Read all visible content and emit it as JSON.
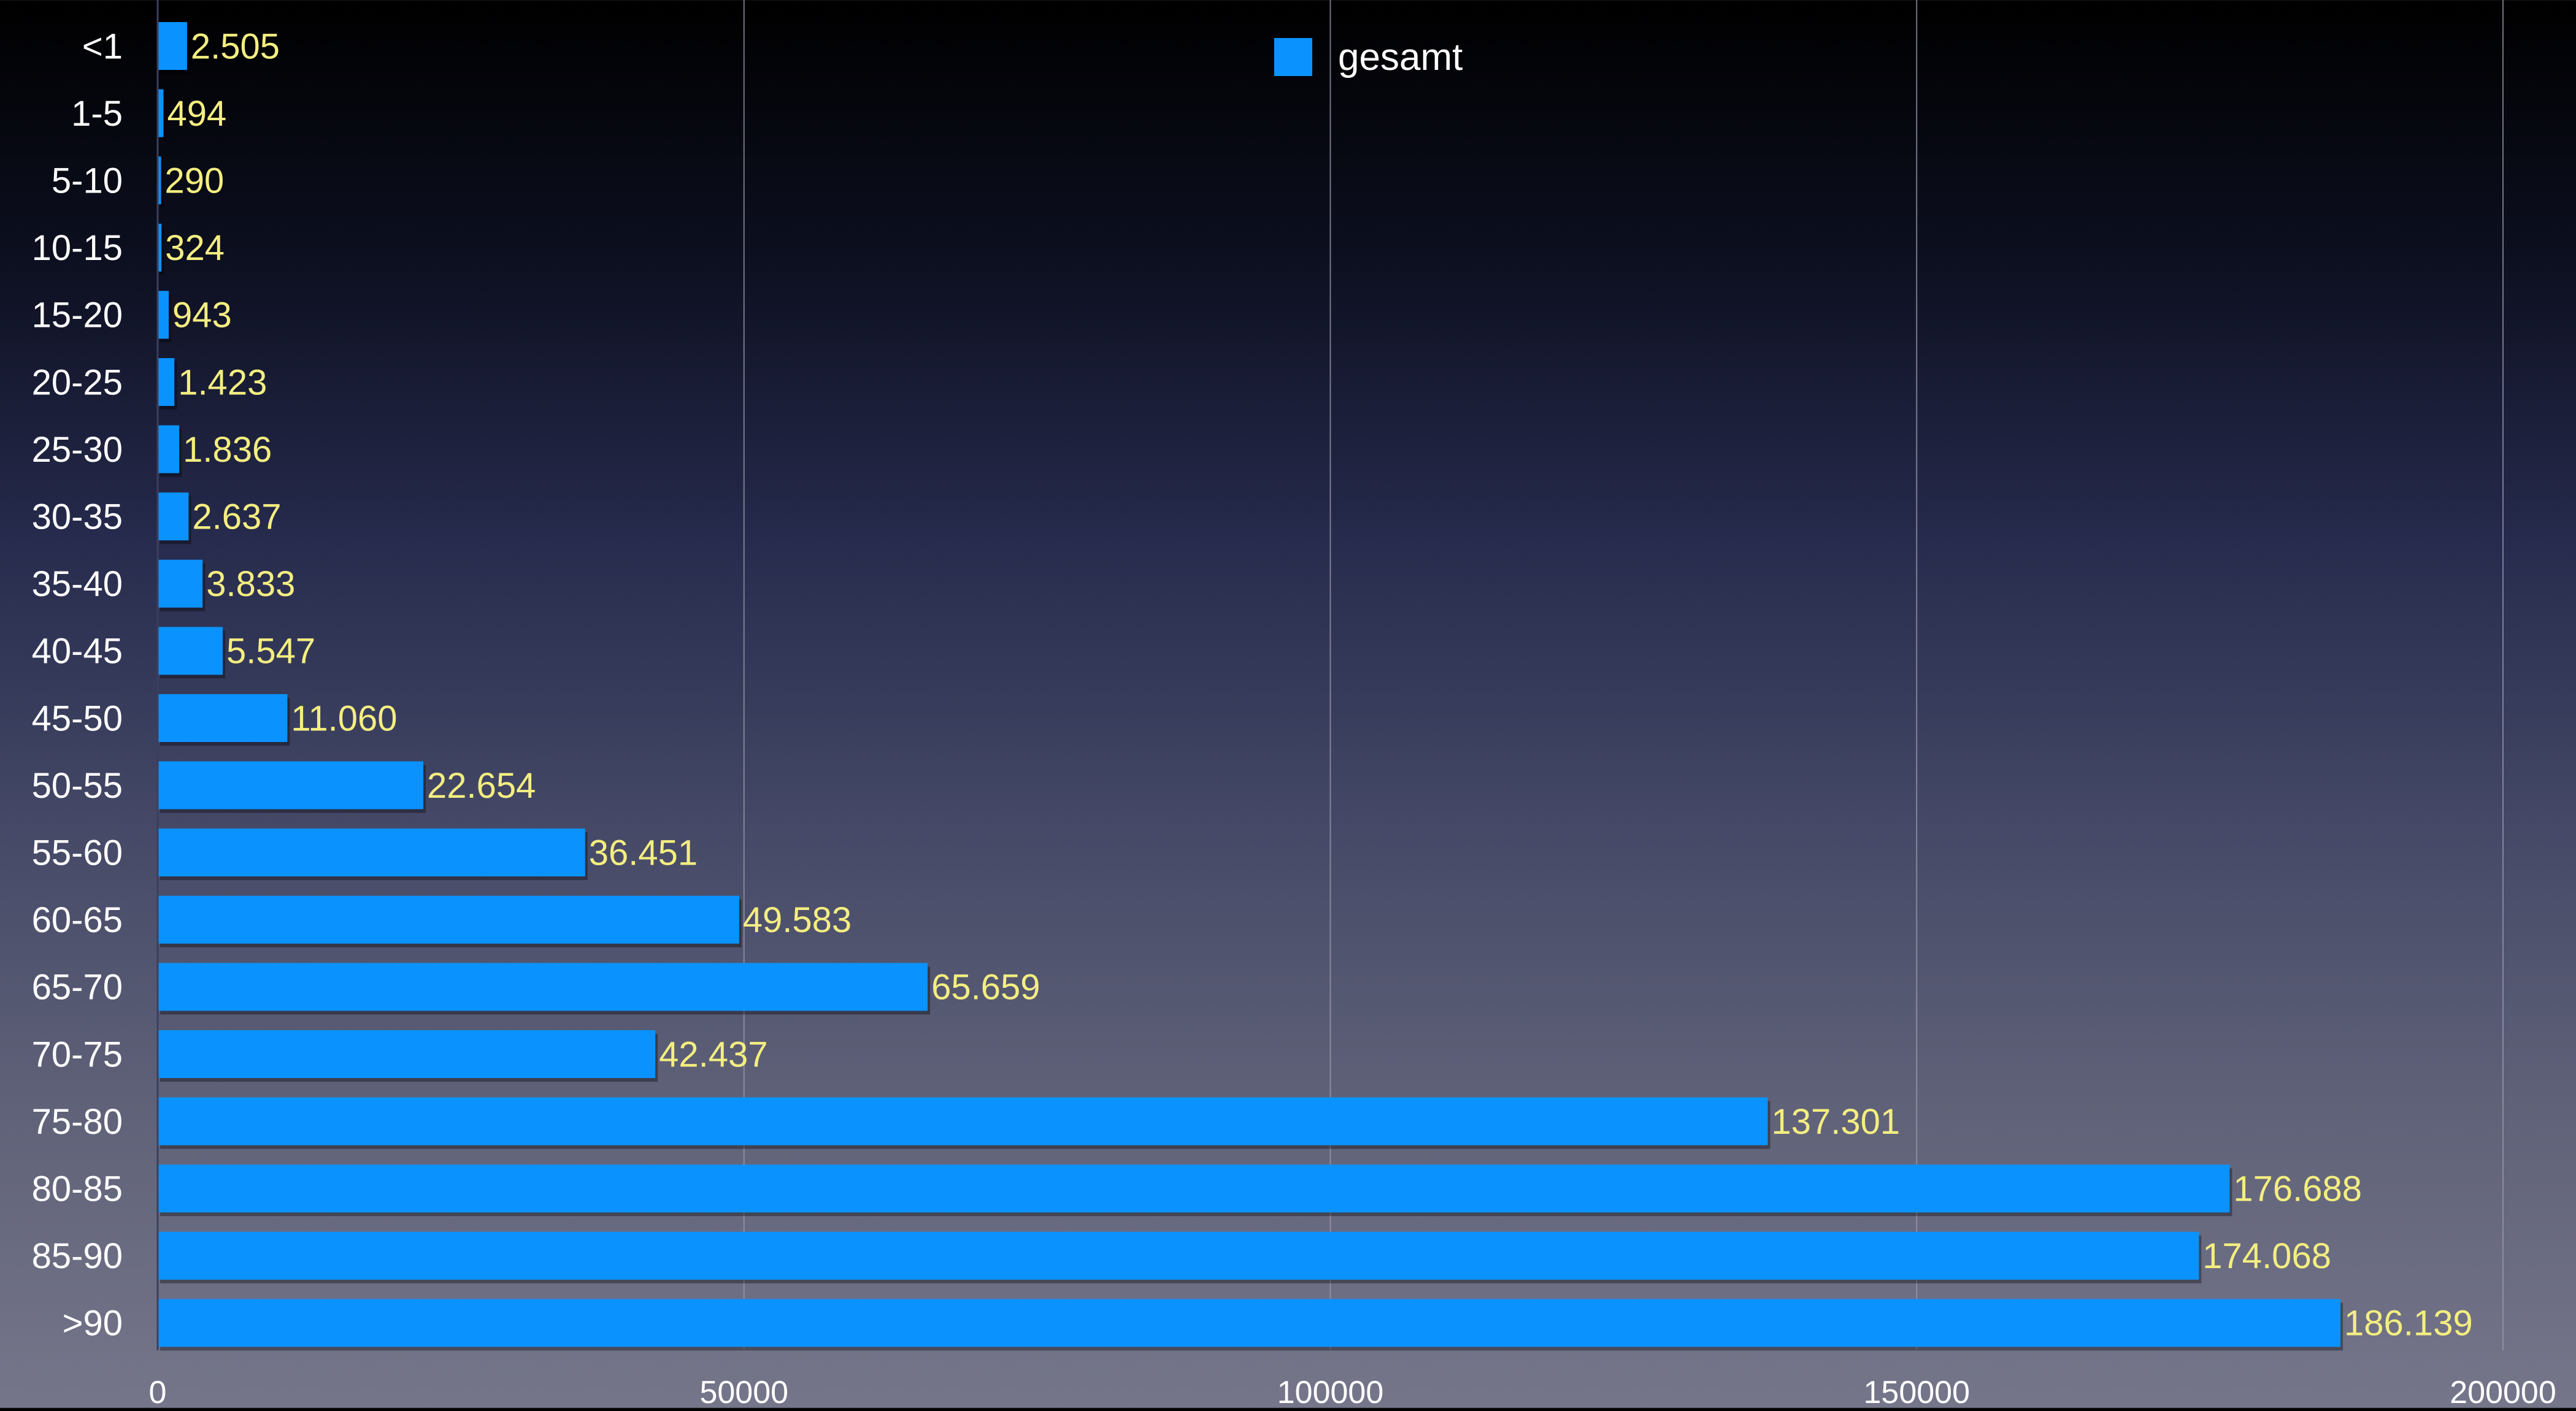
{
  "chart_data": {
    "type": "bar",
    "orientation": "horizontal",
    "categories": [
      "<1",
      "1-5",
      "5-10",
      "10-15",
      "15-20",
      "20-25",
      "25-30",
      "30-35",
      "35-40",
      "40-45",
      "45-50",
      "50-55",
      "55-60",
      "60-65",
      "65-70",
      "70-75",
      "75-80",
      "80-85",
      "85-90",
      ">90"
    ],
    "series": [
      {
        "name": "gesamt",
        "values": [
          2505,
          494,
          290,
          324,
          943,
          1423,
          1836,
          2637,
          3833,
          5547,
          11060,
          22654,
          36451,
          49583,
          65659,
          42437,
          137301,
          176688,
          174068,
          186139
        ],
        "labels": [
          "2.505",
          "494",
          "290",
          "324",
          "943",
          "1.423",
          "1.836",
          "2.637",
          "3.833",
          "5.547",
          "11.060",
          "22.654",
          "36.451",
          "49.583",
          "65.659",
          "42.437",
          "137.301",
          "176.688",
          "174.068",
          "186.139"
        ]
      }
    ],
    "xlim": [
      0,
      200000
    ],
    "xticks": [
      0,
      50000,
      100000,
      150000,
      200000
    ],
    "xtick_labels": [
      "0",
      "50000",
      "100000",
      "150000",
      "200000"
    ],
    "grid": "vertical",
    "legend_position": "top-center",
    "title": "",
    "xlabel": "",
    "ylabel": "",
    "colors": {
      "bar": "#0a93ff",
      "value_label": "#f4ee80",
      "category_label": "#ffffff",
      "tick_label": "#ffffff",
      "grid": "#9a9aac"
    }
  }
}
